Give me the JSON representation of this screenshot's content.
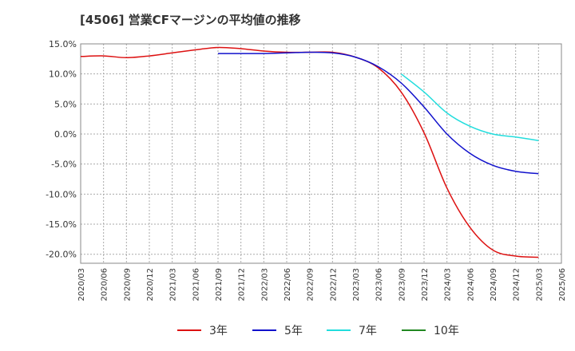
{
  "chart_data": {
    "type": "line",
    "title": "[4506]  営業CFマージンの平均値の推移",
    "xlabel": "",
    "ylabel": "",
    "ylim": [
      -21.5,
      15.0
    ],
    "yticks": [
      15,
      10,
      5,
      0,
      -5,
      -10,
      -15,
      -20
    ],
    "ytick_labels": [
      "15.0%",
      "10.0%",
      "5.0%",
      "0.0%",
      "-5.0%",
      "-10.0%",
      "-15.0%",
      "-20.0%"
    ],
    "x_ticks": [
      "2020/03",
      "2020/06",
      "2020/09",
      "2020/12",
      "2021/03",
      "2021/06",
      "2021/09",
      "2021/12",
      "2022/03",
      "2022/06",
      "2022/09",
      "2022/12",
      "2023/03",
      "2023/06",
      "2023/09",
      "2023/12",
      "2024/03",
      "2024/06",
      "2024/09",
      "2024/12",
      "2025/03",
      "2025/06"
    ],
    "grid": true,
    "legend_position": "bottom",
    "series": [
      {
        "name": "3年",
        "color": "#dd1111",
        "x": [
          "2020/03",
          "2020/06",
          "2020/09",
          "2020/12",
          "2021/03",
          "2021/06",
          "2021/09",
          "2021/12",
          "2022/03",
          "2022/06",
          "2022/09",
          "2022/12",
          "2023/03",
          "2023/06",
          "2023/09",
          "2023/12",
          "2024/03",
          "2024/06",
          "2024/09",
          "2024/12",
          "2025/03"
        ],
        "values": [
          12.9,
          13.0,
          12.7,
          13.0,
          13.5,
          14.0,
          14.4,
          14.2,
          13.8,
          13.6,
          13.6,
          13.6,
          12.8,
          11.0,
          7.0,
          0.2,
          -9.0,
          -15.5,
          -19.3,
          -20.3,
          -20.5
        ]
      },
      {
        "name": "5年",
        "color": "#1111cc",
        "x": [
          "2021/09",
          "2021/12",
          "2022/03",
          "2022/06",
          "2022/09",
          "2022/12",
          "2023/03",
          "2023/06",
          "2023/09",
          "2023/12",
          "2024/03",
          "2024/06",
          "2024/09",
          "2024/12",
          "2025/03"
        ],
        "values": [
          13.4,
          13.4,
          13.4,
          13.5,
          13.6,
          13.5,
          12.8,
          11.2,
          8.5,
          4.5,
          0.0,
          -3.2,
          -5.2,
          -6.2,
          -6.6
        ]
      },
      {
        "name": "7年",
        "color": "#22dddd",
        "x": [
          "2023/09",
          "2023/12",
          "2024/03",
          "2024/06",
          "2024/09",
          "2024/12",
          "2025/03"
        ],
        "values": [
          10.0,
          7.0,
          3.5,
          1.3,
          0.0,
          -0.5,
          -1.1
        ]
      },
      {
        "name": "10年",
        "color": "#228822",
        "x": [],
        "values": []
      }
    ]
  }
}
